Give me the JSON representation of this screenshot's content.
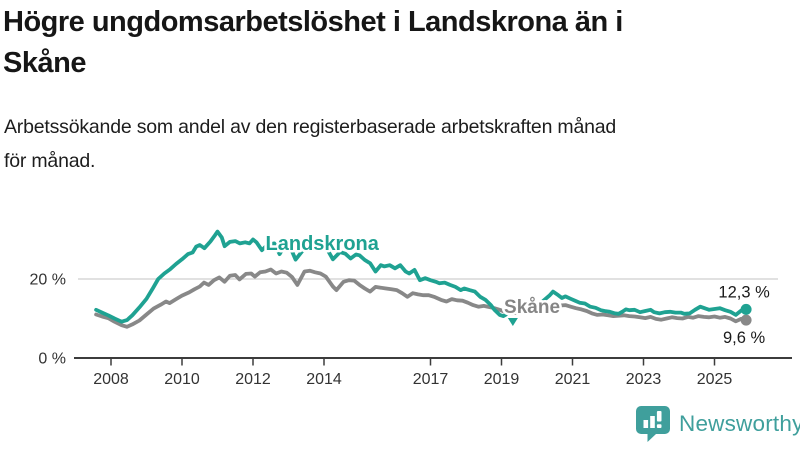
{
  "header": {
    "title": "Högre ungdomsarbetslöshet i Landskrona än i Skåne",
    "title_lines": [
      "Högre ungdomsarbetslöshet i Landskrona än i",
      "Skåne"
    ],
    "subtitle": "Arbetssökande som andel av den registerbaserade arbetskraften månad för månad.",
    "subtitle_lines": [
      "Arbetssökande som andel av den registerbaserade arbetskraften månad",
      "för månad."
    ]
  },
  "chart_data": {
    "type": "line",
    "title": "Högre ungdomsarbetslöshet i Landskrona än i Skåne",
    "subtitle": "Arbetssökande som andel av den registerbaserade arbetskraften månad för månad.",
    "x_axis": {
      "range": [
        2007.5,
        2026.0
      ],
      "ticks": [
        2008,
        2010,
        2012,
        2014,
        2017,
        2019,
        2021,
        2023,
        2025
      ],
      "tick_labels": [
        "2008",
        "2010",
        "2012",
        "2014",
        "2017",
        "2019",
        "2021",
        "2023",
        "2025"
      ]
    },
    "y_axis": {
      "range": [
        0,
        33
      ],
      "unit": "%",
      "ticks": [
        {
          "value": 20,
          "label": "20 %"
        },
        {
          "value": 0,
          "label": "0 %"
        }
      ],
      "gridlines": [
        20
      ]
    },
    "colors": {
      "grid": "#cfcfcf",
      "axis": "#3c3c3c",
      "tick_text": "#333333",
      "value_label": "#1a1a1a"
    },
    "series": [
      {
        "name": "Skåne",
        "color": "#888888",
        "label_color": "#858585",
        "label_anchor": {
          "x": 2019.86,
          "y": 12.9
        },
        "end_dot": true,
        "segments": [
          [
            [
              2007.58,
              11.0
            ],
            [
              2007.75,
              10.5
            ],
            [
              2007.92,
              10.1
            ],
            [
              2008.1,
              9.2
            ],
            [
              2008.3,
              8.3
            ],
            [
              2008.45,
              7.9
            ],
            [
              2008.6,
              8.5
            ],
            [
              2008.8,
              9.5
            ],
            [
              2009.0,
              11.0
            ],
            [
              2009.2,
              12.5
            ],
            [
              2009.4,
              13.5
            ],
            [
              2009.55,
              14.3
            ],
            [
              2009.65,
              13.9
            ],
            [
              2009.85,
              15.0
            ],
            [
              2010.0,
              15.8
            ],
            [
              2010.2,
              16.6
            ],
            [
              2010.35,
              17.4
            ],
            [
              2010.5,
              18.1
            ],
            [
              2010.62,
              19.1
            ],
            [
              2010.75,
              18.5
            ],
            [
              2010.9,
              19.7
            ],
            [
              2011.05,
              20.4
            ],
            [
              2011.2,
              19.3
            ],
            [
              2011.35,
              20.8
            ],
            [
              2011.5,
              21.0
            ],
            [
              2011.62,
              19.9
            ],
            [
              2011.8,
              21.3
            ],
            [
              2011.95,
              21.4
            ],
            [
              2012.05,
              20.6
            ],
            [
              2012.2,
              21.7
            ],
            [
              2012.35,
              21.9
            ],
            [
              2012.5,
              22.4
            ],
            [
              2012.65,
              21.4
            ],
            [
              2012.8,
              21.9
            ],
            [
              2012.95,
              21.6
            ],
            [
              2013.1,
              20.5
            ],
            [
              2013.25,
              18.5
            ],
            [
              2013.45,
              21.9
            ],
            [
              2013.6,
              22.1
            ],
            [
              2013.75,
              21.7
            ],
            [
              2013.9,
              21.4
            ],
            [
              2014.05,
              20.6
            ],
            [
              2014.25,
              18.1
            ],
            [
              2014.35,
              17.2
            ],
            [
              2014.55,
              19.3
            ],
            [
              2014.7,
              19.7
            ],
            [
              2014.85,
              19.6
            ],
            [
              2015.0,
              18.5
            ],
            [
              2015.15,
              17.6
            ],
            [
              2015.3,
              16.8
            ],
            [
              2015.45,
              18.0
            ],
            [
              2015.6,
              17.8
            ],
            [
              2015.75,
              17.6
            ],
            [
              2015.9,
              17.4
            ],
            [
              2016.05,
              17.2
            ],
            [
              2016.2,
              16.4
            ],
            [
              2016.35,
              15.5
            ],
            [
              2016.5,
              16.4
            ],
            [
              2016.65,
              16.1
            ],
            [
              2016.8,
              15.9
            ],
            [
              2016.95,
              15.9
            ],
            [
              2017.1,
              15.5
            ],
            [
              2017.3,
              14.7
            ],
            [
              2017.45,
              14.3
            ],
            [
              2017.6,
              14.9
            ],
            [
              2017.75,
              14.6
            ],
            [
              2017.9,
              14.5
            ],
            [
              2018.05,
              14.0
            ],
            [
              2018.2,
              13.4
            ],
            [
              2018.35,
              13.0
            ],
            [
              2018.5,
              13.2
            ],
            [
              2018.65,
              12.9
            ],
            [
              2018.8,
              12.6
            ],
            [
              2018.95,
              12.2
            ],
            [
              2019.1,
              11.7
            ],
            [
              2019.25,
              11.3
            ],
            [
              2019.4,
              11.4
            ],
            [
              2019.55,
              11.6
            ],
            [
              2019.75,
              12.0
            ],
            [
              2019.95,
              12.6
            ],
            [
              2020.15,
              13.2
            ],
            [
              2020.35,
              13.5
            ],
            [
              2020.5,
              13.4
            ],
            [
              2020.65,
              13.3
            ],
            [
              2020.8,
              13.4
            ],
            [
              2020.95,
              13.0
            ],
            [
              2021.1,
              12.6
            ],
            [
              2021.25,
              12.3
            ],
            [
              2021.4,
              11.9
            ],
            [
              2021.55,
              11.3
            ],
            [
              2021.7,
              10.9
            ],
            [
              2021.85,
              11.0
            ],
            [
              2022.0,
              10.8
            ],
            [
              2022.15,
              10.6
            ],
            [
              2022.3,
              10.7
            ],
            [
              2022.45,
              10.8
            ],
            [
              2022.6,
              10.6
            ],
            [
              2022.75,
              10.5
            ],
            [
              2022.9,
              10.3
            ],
            [
              2023.05,
              10.1
            ],
            [
              2023.2,
              10.4
            ],
            [
              2023.35,
              9.9
            ],
            [
              2023.5,
              9.7
            ],
            [
              2023.65,
              10.0
            ],
            [
              2023.8,
              10.3
            ],
            [
              2023.95,
              10.1
            ],
            [
              2024.1,
              10.0
            ],
            [
              2024.25,
              10.4
            ],
            [
              2024.4,
              10.2
            ],
            [
              2024.55,
              10.6
            ],
            [
              2024.7,
              10.4
            ],
            [
              2024.85,
              10.3
            ],
            [
              2025.0,
              10.5
            ],
            [
              2025.15,
              10.2
            ],
            [
              2025.3,
              10.4
            ],
            [
              2025.45,
              10.0
            ],
            [
              2025.6,
              9.3
            ],
            [
              2025.75,
              9.9
            ],
            [
              2025.89,
              9.6
            ]
          ]
        ]
      },
      {
        "name": "Landskrona",
        "color": "#1fa292",
        "label_color": "#1fa292",
        "label_anchor": {
          "x": 2013.95,
          "y": 28.8
        },
        "end_dot": true,
        "segments": [
          [
            [
              2007.58,
              12.2
            ],
            [
              2007.75,
              11.5
            ],
            [
              2007.92,
              10.8
            ],
            [
              2008.1,
              10.0
            ],
            [
              2008.3,
              9.2
            ],
            [
              2008.45,
              9.6
            ],
            [
              2008.6,
              10.8
            ],
            [
              2008.8,
              12.8
            ],
            [
              2009.0,
              15.0
            ],
            [
              2009.17,
              17.5
            ],
            [
              2009.33,
              20.0
            ],
            [
              2009.5,
              21.4
            ],
            [
              2009.67,
              22.5
            ],
            [
              2009.83,
              23.8
            ],
            [
              2010.0,
              25.0
            ],
            [
              2010.17,
              26.3
            ],
            [
              2010.3,
              26.7
            ],
            [
              2010.4,
              28.2
            ],
            [
              2010.5,
              28.6
            ],
            [
              2010.63,
              27.8
            ],
            [
              2010.8,
              29.5
            ],
            [
              2010.93,
              31.1
            ],
            [
              2011.0,
              32.0
            ],
            [
              2011.12,
              30.5
            ],
            [
              2011.2,
              28.3
            ],
            [
              2011.35,
              29.4
            ],
            [
              2011.5,
              29.6
            ],
            [
              2011.63,
              29.0
            ],
            [
              2011.78,
              29.3
            ],
            [
              2011.9,
              29.0
            ],
            [
              2012.0,
              30.0
            ],
            [
              2012.1,
              29.3
            ],
            [
              2012.25,
              27.3
            ],
            [
              2012.4,
              28.6
            ],
            [
              2012.6,
              29.0
            ],
            [
              2012.75,
              26.3
            ],
            [
              2012.9,
              28.6
            ],
            [
              2013.05,
              28.0
            ],
            [
              2013.2,
              24.9
            ],
            [
              2013.4,
              27.2
            ],
            [
              2013.55,
              28.3
            ],
            [
              2013.75,
              28.6
            ],
            [
              2013.9,
              28.1
            ],
            [
              2014.1,
              27.4
            ],
            [
              2014.25,
              25.0
            ],
            [
              2014.45,
              26.8
            ],
            [
              2014.6,
              26.4
            ],
            [
              2014.75,
              25.2
            ],
            [
              2014.9,
              26.2
            ],
            [
              2015.0,
              26.0
            ],
            [
              2015.15,
              24.8
            ],
            [
              2015.3,
              24.0
            ],
            [
              2015.45,
              21.9
            ],
            [
              2015.6,
              23.5
            ],
            [
              2015.7,
              23.2
            ],
            [
              2015.85,
              23.5
            ],
            [
              2016.0,
              22.7
            ],
            [
              2016.15,
              23.5
            ],
            [
              2016.3,
              21.9
            ],
            [
              2016.4,
              21.4
            ],
            [
              2016.55,
              22.3
            ],
            [
              2016.7,
              19.7
            ],
            [
              2016.85,
              20.2
            ],
            [
              2017.0,
              19.7
            ],
            [
              2017.15,
              19.3
            ],
            [
              2017.25,
              18.9
            ],
            [
              2017.4,
              19.1
            ],
            [
              2017.55,
              18.5
            ],
            [
              2017.7,
              18.0
            ],
            [
              2017.85,
              17.2
            ],
            [
              2017.95,
              17.6
            ],
            [
              2018.1,
              17.2
            ],
            [
              2018.25,
              16.8
            ],
            [
              2018.4,
              15.5
            ],
            [
              2018.55,
              14.7
            ],
            [
              2018.7,
              13.4
            ],
            [
              2018.8,
              12.2
            ],
            [
              2018.95,
              10.9
            ],
            [
              2019.05,
              10.6
            ],
            [
              2019.13,
              11.0
            ]
          ],
          [
            [
              2020.17,
              14.4
            ],
            [
              2020.35,
              15.8
            ],
            [
              2020.45,
              16.8
            ],
            [
              2020.6,
              15.9
            ],
            [
              2020.7,
              15.2
            ],
            [
              2020.8,
              15.6
            ],
            [
              2020.95,
              15.0
            ],
            [
              2021.1,
              14.4
            ],
            [
              2021.2,
              14.0
            ],
            [
              2021.35,
              13.8
            ],
            [
              2021.5,
              13.0
            ],
            [
              2021.65,
              12.7
            ],
            [
              2021.8,
              12.1
            ],
            [
              2021.9,
              11.9
            ],
            [
              2022.05,
              11.7
            ],
            [
              2022.2,
              11.3
            ],
            [
              2022.3,
              11.2
            ],
            [
              2022.4,
              11.7
            ],
            [
              2022.5,
              12.3
            ],
            [
              2022.6,
              12.1
            ],
            [
              2022.75,
              12.2
            ],
            [
              2022.9,
              11.6
            ],
            [
              2023.05,
              11.9
            ],
            [
              2023.2,
              12.2
            ],
            [
              2023.3,
              11.6
            ],
            [
              2023.45,
              11.3
            ],
            [
              2023.6,
              11.6
            ],
            [
              2023.75,
              11.7
            ],
            [
              2023.9,
              11.5
            ],
            [
              2024.05,
              11.5
            ],
            [
              2024.15,
              11.2
            ],
            [
              2024.3,
              11.3
            ],
            [
              2024.45,
              12.2
            ],
            [
              2024.6,
              13.0
            ],
            [
              2024.75,
              12.5
            ],
            [
              2024.85,
              12.2
            ],
            [
              2025.0,
              12.4
            ],
            [
              2025.15,
              12.6
            ],
            [
              2025.3,
              12.1
            ],
            [
              2025.45,
              11.7
            ],
            [
              2025.6,
              10.9
            ],
            [
              2025.75,
              12.0
            ],
            [
              2025.89,
              12.3
            ]
          ]
        ]
      }
    ],
    "end_labels": [
      {
        "series": "Landskrona",
        "text": "12,3 %",
        "placement": "above"
      },
      {
        "series": "Skåne",
        "text": "9,6 %",
        "placement": "below"
      }
    ],
    "break_marker": {
      "series": "Landskrona",
      "shape": "triangle-down",
      "x": 2019.32,
      "y": 9.1,
      "color": "#1fa292"
    },
    "legend_position": "inline-labels",
    "grid": "horizontal-only"
  },
  "logo": {
    "text": "Newsworthy",
    "color": "#3f9f9c",
    "icon": "bar-chart-speech-bubble-icon"
  }
}
